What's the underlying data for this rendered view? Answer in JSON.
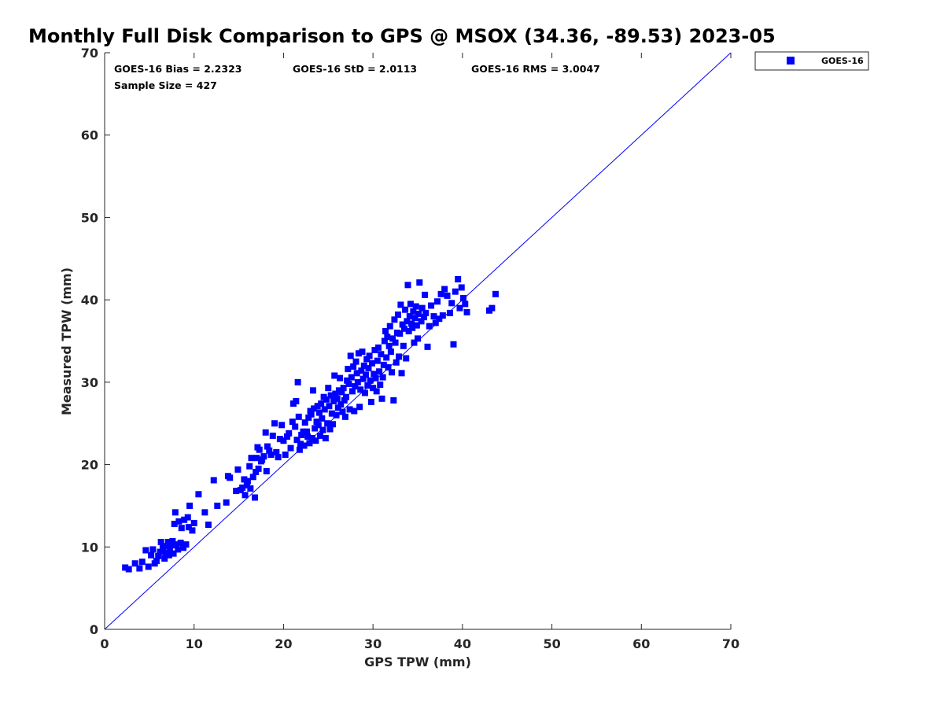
{
  "chart_data": {
    "type": "scatter",
    "title": "Monthly Full Disk Comparison to GPS @ MSOX (34.36, -89.53) 2023-05",
    "xlabel": "GPS TPW (mm)",
    "ylabel": "Measured TPW (mm)",
    "xlim": [
      0,
      70
    ],
    "ylim": [
      0,
      70
    ],
    "xticks": [
      "0",
      "10",
      "20",
      "30",
      "40",
      "50",
      "60",
      "70"
    ],
    "yticks": [
      "0",
      "10",
      "20",
      "30",
      "40",
      "50",
      "60",
      "70"
    ],
    "grid": false,
    "legend_position": "top-right",
    "annotations": {
      "bias": "GOES-16 Bias = 2.2323",
      "std": "GOES-16 StD = 2.0113",
      "rms": "GOES-16 RMS = 3.0047",
      "sample": "Sample Size = 427"
    },
    "reference_line": {
      "x": [
        0,
        70
      ],
      "y": [
        0,
        70
      ],
      "color": "#0000ff"
    },
    "series": [
      {
        "name": "GOES-16",
        "color": "#0000ff",
        "marker": "square",
        "points": [
          [
            2.3,
            7.5
          ],
          [
            2.7,
            7.3
          ],
          [
            3.4,
            8.0
          ],
          [
            3.9,
            7.4
          ],
          [
            4.2,
            8.2
          ],
          [
            4.6,
            9.6
          ],
          [
            4.9,
            7.6
          ],
          [
            5.2,
            9.0
          ],
          [
            5.4,
            9.7
          ],
          [
            5.6,
            8.0
          ],
          [
            5.8,
            8.3
          ],
          [
            6.0,
            8.9
          ],
          [
            6.2,
            9.4
          ],
          [
            6.3,
            10.6
          ],
          [
            6.5,
            9.9
          ],
          [
            6.7,
            8.6
          ],
          [
            6.9,
            9.3
          ],
          [
            7.0,
            10.1
          ],
          [
            7.1,
            10.6
          ],
          [
            7.2,
            9.0
          ],
          [
            7.3,
            9.6
          ],
          [
            7.5,
            10.2
          ],
          [
            7.6,
            10.7
          ],
          [
            7.7,
            9.2
          ],
          [
            7.8,
            12.8
          ],
          [
            7.9,
            14.2
          ],
          [
            8.0,
            10.3
          ],
          [
            8.2,
            9.7
          ],
          [
            8.3,
            13.1
          ],
          [
            8.5,
            10.5
          ],
          [
            8.6,
            12.3
          ],
          [
            8.8,
            9.9
          ],
          [
            8.9,
            13.3
          ],
          [
            9.1,
            10.3
          ],
          [
            9.3,
            13.6
          ],
          [
            9.4,
            12.4
          ],
          [
            9.5,
            15.0
          ],
          [
            9.8,
            12.0
          ],
          [
            10.0,
            12.9
          ],
          [
            10.5,
            16.4
          ],
          [
            11.2,
            14.2
          ],
          [
            11.6,
            12.7
          ],
          [
            12.2,
            18.1
          ],
          [
            12.6,
            15.0
          ],
          [
            13.6,
            15.4
          ],
          [
            13.8,
            18.6
          ],
          [
            14.0,
            18.4
          ],
          [
            14.7,
            16.8
          ],
          [
            14.9,
            19.4
          ],
          [
            15.2,
            16.9
          ],
          [
            15.4,
            17.2
          ],
          [
            15.6,
            18.2
          ],
          [
            15.7,
            16.3
          ],
          [
            15.9,
            17.5
          ],
          [
            16.0,
            18.0
          ],
          [
            16.2,
            19.8
          ],
          [
            16.3,
            17.1
          ],
          [
            16.4,
            20.8
          ],
          [
            16.6,
            18.5
          ],
          [
            16.8,
            16.0
          ],
          [
            16.9,
            19.1
          ],
          [
            17.0,
            20.8
          ],
          [
            17.1,
            22.1
          ],
          [
            17.2,
            19.5
          ],
          [
            17.3,
            21.8
          ],
          [
            17.5,
            20.4
          ],
          [
            17.6,
            20.6
          ],
          [
            17.8,
            21.0
          ],
          [
            18.0,
            23.9
          ],
          [
            18.1,
            19.2
          ],
          [
            18.2,
            22.2
          ],
          [
            18.4,
            21.7
          ],
          [
            18.6,
            21.2
          ],
          [
            18.8,
            23.5
          ],
          [
            19.0,
            25.0
          ],
          [
            19.2,
            21.5
          ],
          [
            19.4,
            20.9
          ],
          [
            19.6,
            23.1
          ],
          [
            19.8,
            24.8
          ],
          [
            20.0,
            22.9
          ],
          [
            20.2,
            21.2
          ],
          [
            20.4,
            23.4
          ],
          [
            20.6,
            23.8
          ],
          [
            20.8,
            22.0
          ],
          [
            21.0,
            25.2
          ],
          [
            21.1,
            27.4
          ],
          [
            21.3,
            24.6
          ],
          [
            21.4,
            27.7
          ],
          [
            21.5,
            23.0
          ],
          [
            21.6,
            30.0
          ],
          [
            21.7,
            25.8
          ],
          [
            21.8,
            21.8
          ],
          [
            21.9,
            22.5
          ],
          [
            22.0,
            23.6
          ],
          [
            22.2,
            24.0
          ],
          [
            22.3,
            22.3
          ],
          [
            22.4,
            25.1
          ],
          [
            22.6,
            24.0
          ],
          [
            22.7,
            23.4
          ],
          [
            22.8,
            25.7
          ],
          [
            22.9,
            22.6
          ],
          [
            23.0,
            26.5
          ],
          [
            23.1,
            26.1
          ],
          [
            23.2,
            23.2
          ],
          [
            23.3,
            29.0
          ],
          [
            23.4,
            26.8
          ],
          [
            23.5,
            24.4
          ],
          [
            23.6,
            22.9
          ],
          [
            23.7,
            25.2
          ],
          [
            23.8,
            27.1
          ],
          [
            23.9,
            24.8
          ],
          [
            24.0,
            26.3
          ],
          [
            24.1,
            23.5
          ],
          [
            24.2,
            27.4
          ],
          [
            24.3,
            25.6
          ],
          [
            24.4,
            24.2
          ],
          [
            24.5,
            28.2
          ],
          [
            24.6,
            26.7
          ],
          [
            24.7,
            23.2
          ],
          [
            24.8,
            27.9
          ],
          [
            24.9,
            25.0
          ],
          [
            25.0,
            29.3
          ],
          [
            25.1,
            27.1
          ],
          [
            25.2,
            24.3
          ],
          [
            25.3,
            28.4
          ],
          [
            25.4,
            26.2
          ],
          [
            25.5,
            24.9
          ],
          [
            25.6,
            27.7
          ],
          [
            25.7,
            30.8
          ],
          [
            25.8,
            28.6
          ],
          [
            25.9,
            26.0
          ],
          [
            26.0,
            28.0
          ],
          [
            26.1,
            26.9
          ],
          [
            26.2,
            29.0
          ],
          [
            26.3,
            30.5
          ],
          [
            26.4,
            27.3
          ],
          [
            26.5,
            28.8
          ],
          [
            26.6,
            26.4
          ],
          [
            26.7,
            29.3
          ],
          [
            26.8,
            27.8
          ],
          [
            26.9,
            25.8
          ],
          [
            27.0,
            28.2
          ],
          [
            27.1,
            30.2
          ],
          [
            27.2,
            31.6
          ],
          [
            27.3,
            29.8
          ],
          [
            27.4,
            26.7
          ],
          [
            27.5,
            33.2
          ],
          [
            27.6,
            30.6
          ],
          [
            27.7,
            28.9
          ],
          [
            27.8,
            31.9
          ],
          [
            27.9,
            26.5
          ],
          [
            28.0,
            29.5
          ],
          [
            28.1,
            32.5
          ],
          [
            28.2,
            31.1
          ],
          [
            28.3,
            30.0
          ],
          [
            28.4,
            33.5
          ],
          [
            28.5,
            27.0
          ],
          [
            28.6,
            29.1
          ],
          [
            28.7,
            31.4
          ],
          [
            28.8,
            33.7
          ],
          [
            28.9,
            30.4
          ],
          [
            29.0,
            32.0
          ],
          [
            29.1,
            28.7
          ],
          [
            29.2,
            30.9
          ],
          [
            29.3,
            32.8
          ],
          [
            29.4,
            29.6
          ],
          [
            29.5,
            31.7
          ],
          [
            29.6,
            33.2
          ],
          [
            29.7,
            30.2
          ],
          [
            29.8,
            27.6
          ],
          [
            29.9,
            32.3
          ],
          [
            30.0,
            29.3
          ],
          [
            30.1,
            31.0
          ],
          [
            30.2,
            33.9
          ],
          [
            30.3,
            30.5
          ],
          [
            30.4,
            28.9
          ],
          [
            30.5,
            32.6
          ],
          [
            30.6,
            34.2
          ],
          [
            30.7,
            31.3
          ],
          [
            30.8,
            29.7
          ],
          [
            30.9,
            33.4
          ],
          [
            31.0,
            28.0
          ],
          [
            31.1,
            30.6
          ],
          [
            31.2,
            32.1
          ],
          [
            31.3,
            35.0
          ],
          [
            31.4,
            36.2
          ],
          [
            31.5,
            33.0
          ],
          [
            31.6,
            35.5
          ],
          [
            31.7,
            31.8
          ],
          [
            31.8,
            34.4
          ],
          [
            31.9,
            36.8
          ],
          [
            32.0,
            33.7
          ],
          [
            32.1,
            31.2
          ],
          [
            32.2,
            35.3
          ],
          [
            32.3,
            27.8
          ],
          [
            32.4,
            37.6
          ],
          [
            32.5,
            34.8
          ],
          [
            32.6,
            32.4
          ],
          [
            32.7,
            36.0
          ],
          [
            32.8,
            38.2
          ],
          [
            32.9,
            33.1
          ],
          [
            33.0,
            35.9
          ],
          [
            33.1,
            39.4
          ],
          [
            33.2,
            31.1
          ],
          [
            33.3,
            37.0
          ],
          [
            33.4,
            34.4
          ],
          [
            33.5,
            36.5
          ],
          [
            33.6,
            38.8
          ],
          [
            33.7,
            32.9
          ],
          [
            33.8,
            37.4
          ],
          [
            33.9,
            41.8
          ],
          [
            34.0,
            36.2
          ],
          [
            34.1,
            38.0
          ],
          [
            34.2,
            39.5
          ],
          [
            34.3,
            37.1
          ],
          [
            34.4,
            36.6
          ],
          [
            34.5,
            38.6
          ],
          [
            34.6,
            34.8
          ],
          [
            34.7,
            37.8
          ],
          [
            34.8,
            39.2
          ],
          [
            34.9,
            36.9
          ],
          [
            35.0,
            35.3
          ],
          [
            35.1,
            38.3
          ],
          [
            35.2,
            42.1
          ],
          [
            35.4,
            37.4
          ],
          [
            35.5,
            39.0
          ],
          [
            35.7,
            37.9
          ],
          [
            35.8,
            40.6
          ],
          [
            35.9,
            38.4
          ],
          [
            36.1,
            34.3
          ],
          [
            36.3,
            36.8
          ],
          [
            36.5,
            39.3
          ],
          [
            36.8,
            38.0
          ],
          [
            37.0,
            37.2
          ],
          [
            37.2,
            39.8
          ],
          [
            37.4,
            37.7
          ],
          [
            37.6,
            40.7
          ],
          [
            37.8,
            38.1
          ],
          [
            38.0,
            41.3
          ],
          [
            38.3,
            40.5
          ],
          [
            38.6,
            38.4
          ],
          [
            38.8,
            39.6
          ],
          [
            39.0,
            34.6
          ],
          [
            39.2,
            41.0
          ],
          [
            39.5,
            42.5
          ],
          [
            39.7,
            39.0
          ],
          [
            39.9,
            41.5
          ],
          [
            40.1,
            40.2
          ],
          [
            40.3,
            39.5
          ],
          [
            40.5,
            38.5
          ],
          [
            43.0,
            38.7
          ],
          [
            43.3,
            39.0
          ],
          [
            43.7,
            40.7
          ]
        ]
      }
    ]
  }
}
